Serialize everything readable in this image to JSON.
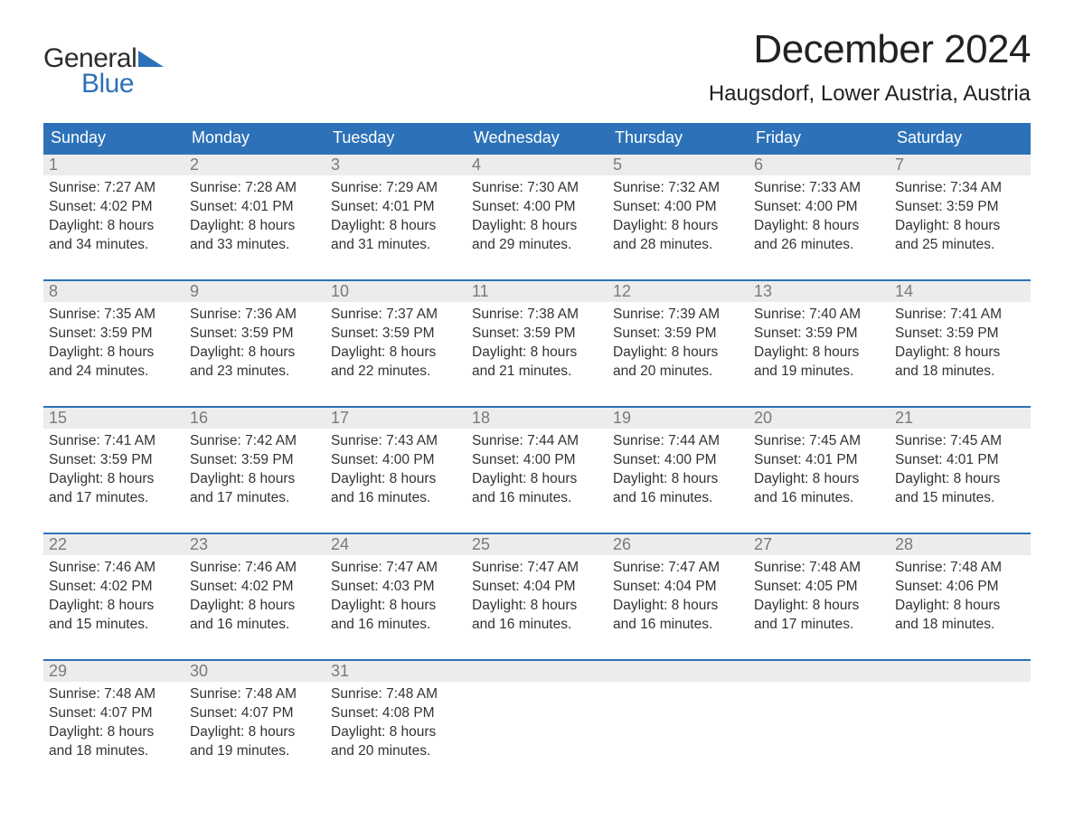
{
  "logo": {
    "text_general": "General",
    "text_blue": "Blue",
    "triangle_color": "#2d72b8"
  },
  "header": {
    "month_title": "December 2024",
    "location": "Haugsdorf, Lower Austria, Austria"
  },
  "colors": {
    "header_bg": "#2d72b8",
    "header_text": "#ffffff",
    "daynum_bg": "#ececec",
    "daynum_text": "#7a7a7a",
    "body_text": "#333333",
    "week_border": "#2d72b8",
    "page_bg": "#ffffff"
  },
  "fonts": {
    "month_title_size": 44,
    "location_size": 24,
    "dayheader_size": 18,
    "daynum_size": 18,
    "body_size": 15.5
  },
  "day_headers": [
    "Sunday",
    "Monday",
    "Tuesday",
    "Wednesday",
    "Thursday",
    "Friday",
    "Saturday"
  ],
  "weeks": [
    [
      {
        "num": "1",
        "sunrise": "7:27 AM",
        "sunset": "4:02 PM",
        "dl1": "8 hours",
        "dl2": "and 34 minutes."
      },
      {
        "num": "2",
        "sunrise": "7:28 AM",
        "sunset": "4:01 PM",
        "dl1": "8 hours",
        "dl2": "and 33 minutes."
      },
      {
        "num": "3",
        "sunrise": "7:29 AM",
        "sunset": "4:01 PM",
        "dl1": "8 hours",
        "dl2": "and 31 minutes."
      },
      {
        "num": "4",
        "sunrise": "7:30 AM",
        "sunset": "4:00 PM",
        "dl1": "8 hours",
        "dl2": "and 29 minutes."
      },
      {
        "num": "5",
        "sunrise": "7:32 AM",
        "sunset": "4:00 PM",
        "dl1": "8 hours",
        "dl2": "and 28 minutes."
      },
      {
        "num": "6",
        "sunrise": "7:33 AM",
        "sunset": "4:00 PM",
        "dl1": "8 hours",
        "dl2": "and 26 minutes."
      },
      {
        "num": "7",
        "sunrise": "7:34 AM",
        "sunset": "3:59 PM",
        "dl1": "8 hours",
        "dl2": "and 25 minutes."
      }
    ],
    [
      {
        "num": "8",
        "sunrise": "7:35 AM",
        "sunset": "3:59 PM",
        "dl1": "8 hours",
        "dl2": "and 24 minutes."
      },
      {
        "num": "9",
        "sunrise": "7:36 AM",
        "sunset": "3:59 PM",
        "dl1": "8 hours",
        "dl2": "and 23 minutes."
      },
      {
        "num": "10",
        "sunrise": "7:37 AM",
        "sunset": "3:59 PM",
        "dl1": "8 hours",
        "dl2": "and 22 minutes."
      },
      {
        "num": "11",
        "sunrise": "7:38 AM",
        "sunset": "3:59 PM",
        "dl1": "8 hours",
        "dl2": "and 21 minutes."
      },
      {
        "num": "12",
        "sunrise": "7:39 AM",
        "sunset": "3:59 PM",
        "dl1": "8 hours",
        "dl2": "and 20 minutes."
      },
      {
        "num": "13",
        "sunrise": "7:40 AM",
        "sunset": "3:59 PM",
        "dl1": "8 hours",
        "dl2": "and 19 minutes."
      },
      {
        "num": "14",
        "sunrise": "7:41 AM",
        "sunset": "3:59 PM",
        "dl1": "8 hours",
        "dl2": "and 18 minutes."
      }
    ],
    [
      {
        "num": "15",
        "sunrise": "7:41 AM",
        "sunset": "3:59 PM",
        "dl1": "8 hours",
        "dl2": "and 17 minutes."
      },
      {
        "num": "16",
        "sunrise": "7:42 AM",
        "sunset": "3:59 PM",
        "dl1": "8 hours",
        "dl2": "and 17 minutes."
      },
      {
        "num": "17",
        "sunrise": "7:43 AM",
        "sunset": "4:00 PM",
        "dl1": "8 hours",
        "dl2": "and 16 minutes."
      },
      {
        "num": "18",
        "sunrise": "7:44 AM",
        "sunset": "4:00 PM",
        "dl1": "8 hours",
        "dl2": "and 16 minutes."
      },
      {
        "num": "19",
        "sunrise": "7:44 AM",
        "sunset": "4:00 PM",
        "dl1": "8 hours",
        "dl2": "and 16 minutes."
      },
      {
        "num": "20",
        "sunrise": "7:45 AM",
        "sunset": "4:01 PM",
        "dl1": "8 hours",
        "dl2": "and 16 minutes."
      },
      {
        "num": "21",
        "sunrise": "7:45 AM",
        "sunset": "4:01 PM",
        "dl1": "8 hours",
        "dl2": "and 15 minutes."
      }
    ],
    [
      {
        "num": "22",
        "sunrise": "7:46 AM",
        "sunset": "4:02 PM",
        "dl1": "8 hours",
        "dl2": "and 15 minutes."
      },
      {
        "num": "23",
        "sunrise": "7:46 AM",
        "sunset": "4:02 PM",
        "dl1": "8 hours",
        "dl2": "and 16 minutes."
      },
      {
        "num": "24",
        "sunrise": "7:47 AM",
        "sunset": "4:03 PM",
        "dl1": "8 hours",
        "dl2": "and 16 minutes."
      },
      {
        "num": "25",
        "sunrise": "7:47 AM",
        "sunset": "4:04 PM",
        "dl1": "8 hours",
        "dl2": "and 16 minutes."
      },
      {
        "num": "26",
        "sunrise": "7:47 AM",
        "sunset": "4:04 PM",
        "dl1": "8 hours",
        "dl2": "and 16 minutes."
      },
      {
        "num": "27",
        "sunrise": "7:48 AM",
        "sunset": "4:05 PM",
        "dl1": "8 hours",
        "dl2": "and 17 minutes."
      },
      {
        "num": "28",
        "sunrise": "7:48 AM",
        "sunset": "4:06 PM",
        "dl1": "8 hours",
        "dl2": "and 18 minutes."
      }
    ],
    [
      {
        "num": "29",
        "sunrise": "7:48 AM",
        "sunset": "4:07 PM",
        "dl1": "8 hours",
        "dl2": "and 18 minutes."
      },
      {
        "num": "30",
        "sunrise": "7:48 AM",
        "sunset": "4:07 PM",
        "dl1": "8 hours",
        "dl2": "and 19 minutes."
      },
      {
        "num": "31",
        "sunrise": "7:48 AM",
        "sunset": "4:08 PM",
        "dl1": "8 hours",
        "dl2": "and 20 minutes."
      },
      {
        "empty": true
      },
      {
        "empty": true
      },
      {
        "empty": true
      },
      {
        "empty": true
      }
    ]
  ]
}
